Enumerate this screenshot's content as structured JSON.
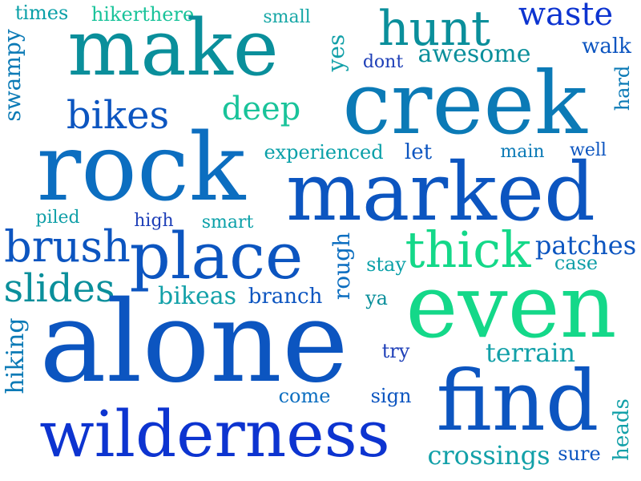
{
  "words": [
    {
      "text": "times",
      "color": "#0aa0a8"
    },
    {
      "text": "hikerthere",
      "color": "#19c39a"
    },
    {
      "text": "small",
      "color": "#17a7a6"
    },
    {
      "text": "hunt",
      "color": "#0a8f9b"
    },
    {
      "text": "waste",
      "color": "#0d34d0"
    },
    {
      "text": "swampy",
      "color": "#0b7ab6"
    },
    {
      "text": "make",
      "color": "#0a8f9b"
    },
    {
      "text": "yes",
      "color": "#12a0a8"
    },
    {
      "text": "dont",
      "color": "#1f40b8"
    },
    {
      "text": "awesome",
      "color": "#0a8f9b"
    },
    {
      "text": "walk",
      "color": "#0c55c0"
    },
    {
      "text": "hard",
      "color": "#0b7ab6"
    },
    {
      "text": "bikes",
      "color": "#0c55c0"
    },
    {
      "text": "deep",
      "color": "#19c39a"
    },
    {
      "text": "creek",
      "color": "#0b7ab6"
    },
    {
      "text": "rock",
      "color": "#0c6ec0"
    },
    {
      "text": "experienced",
      "color": "#0aa0a8"
    },
    {
      "text": "let",
      "color": "#0c55c0"
    },
    {
      "text": "main",
      "color": "#0b7ab6"
    },
    {
      "text": "well",
      "color": "#0c55c0"
    },
    {
      "text": "marked",
      "color": "#0c55c0"
    },
    {
      "text": "piled",
      "color": "#12a0a8"
    },
    {
      "text": "high",
      "color": "#1f40b8"
    },
    {
      "text": "smart",
      "color": "#0aa0a8"
    },
    {
      "text": "brush",
      "color": "#0c55c0"
    },
    {
      "text": "place",
      "color": "#0c55c0"
    },
    {
      "text": "rough",
      "color": "#0c6ec0"
    },
    {
      "text": "thick",
      "color": "#14d889"
    },
    {
      "text": "patches",
      "color": "#0c55c0"
    },
    {
      "text": "case",
      "color": "#12a0a8"
    },
    {
      "text": "stay",
      "color": "#0aa0a8"
    },
    {
      "text": "slides",
      "color": "#0a8f9b"
    },
    {
      "text": "bikeas",
      "color": "#12a0a8"
    },
    {
      "text": "branch",
      "color": "#0c55c0"
    },
    {
      "text": "ya",
      "color": "#0a8f9b"
    },
    {
      "text": "even",
      "color": "#14d889"
    },
    {
      "text": "hiking",
      "color": "#0b7ab6"
    },
    {
      "text": "alone",
      "color": "#0c55c0"
    },
    {
      "text": "try",
      "color": "#1f40b8"
    },
    {
      "text": "terrain",
      "color": "#12a0a8"
    },
    {
      "text": "come",
      "color": "#0c6ec0"
    },
    {
      "text": "sign",
      "color": "#0c55c0"
    },
    {
      "text": "find",
      "color": "#0c55c0"
    },
    {
      "text": "heads",
      "color": "#12a0a8"
    },
    {
      "text": "wilderness",
      "color": "#0d34d0"
    },
    {
      "text": "crossings",
      "color": "#12a0a8"
    },
    {
      "text": "sure",
      "color": "#0c55c0"
    }
  ]
}
